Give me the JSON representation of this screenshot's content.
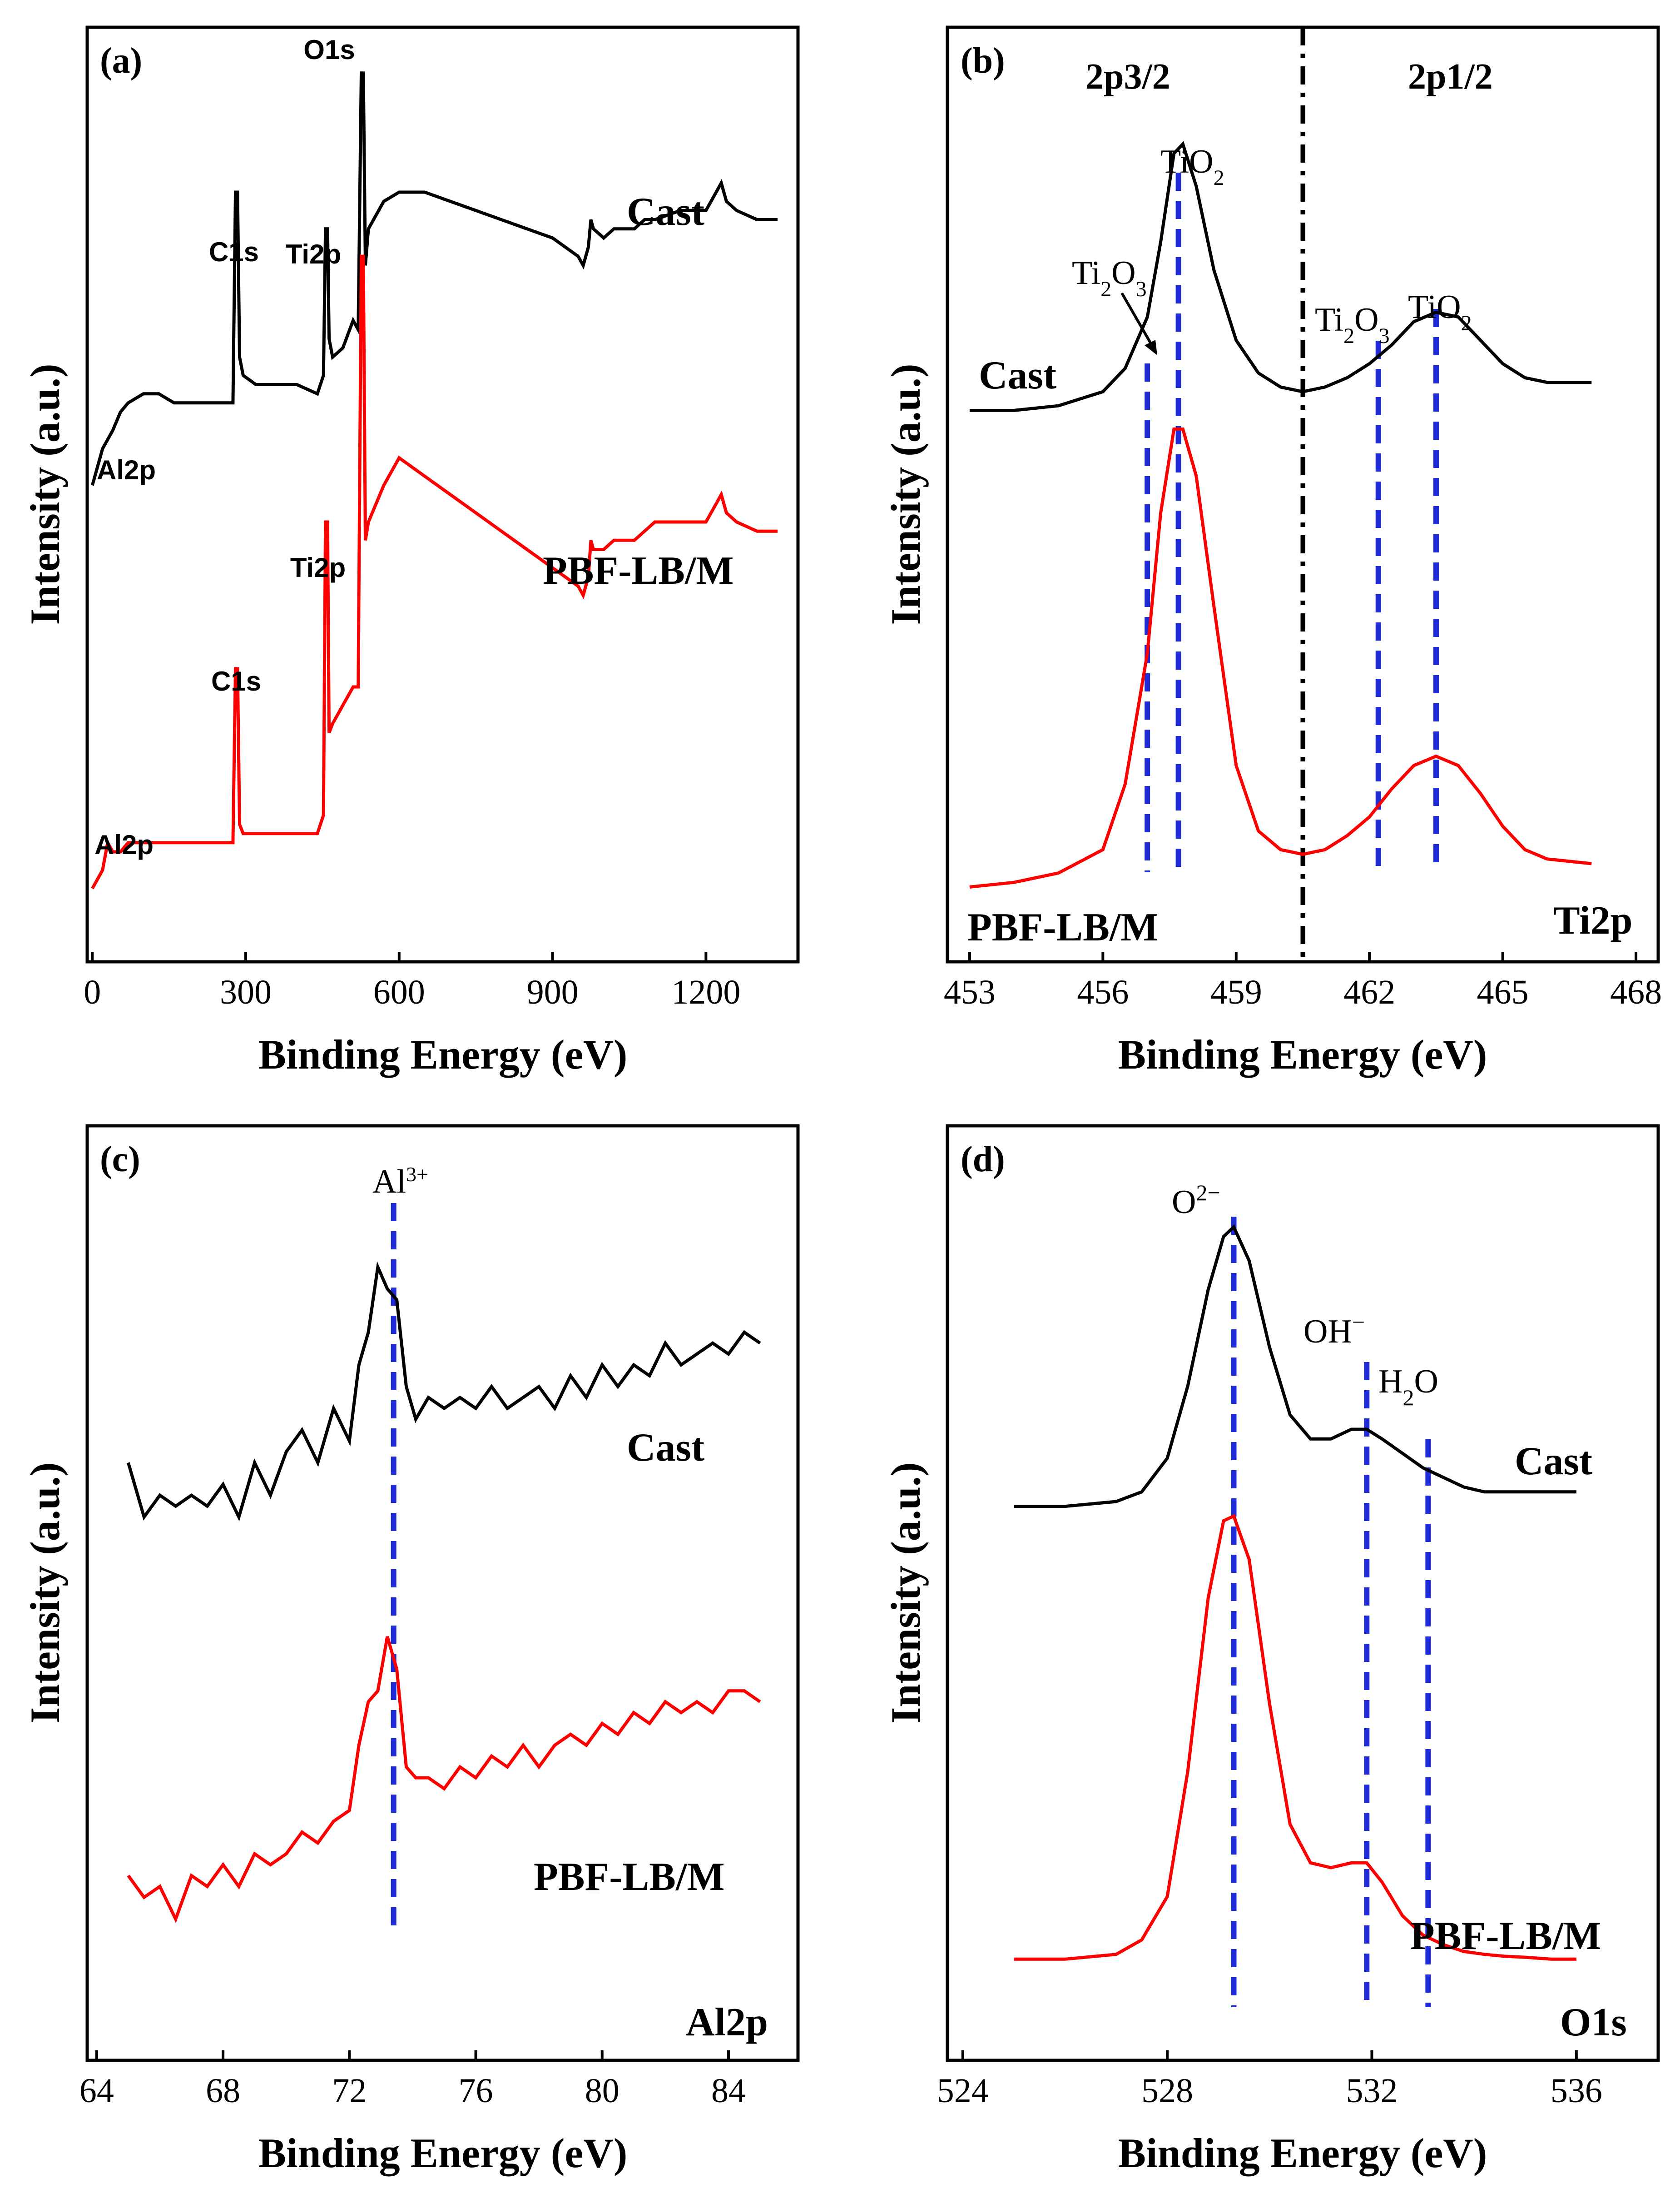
{
  "chart_data": [
    {
      "id": "a",
      "type": "line",
      "panel_label": "(a)",
      "xlabel": "Binding Energy (eV)",
      "ylabel": "Intensity (a.u.)",
      "xlim": [
        -10,
        1380
      ],
      "xticks": [
        0,
        300,
        600,
        900,
        1200
      ],
      "series": [
        {
          "name": "Cast",
          "color": "#000000",
          "label": "Cast",
          "x": [
            0,
            20,
            40,
            55,
            70,
            100,
            130,
            160,
            200,
            250,
            275,
            280,
            284,
            288,
            295,
            320,
            360,
            400,
            440,
            452,
            456,
            460,
            463,
            470,
            490,
            510,
            520,
            526,
            530,
            534,
            540,
            570,
            600,
            650,
            700,
            750,
            800,
            850,
            900,
            950,
            960,
            970,
            975,
            980,
            1000,
            1020,
            1060,
            1080,
            1100,
            1150,
            1200,
            1220,
            1230,
            1240,
            1260,
            1300,
            1340
          ],
          "y": [
            0.52,
            0.56,
            0.58,
            0.6,
            0.61,
            0.62,
            0.62,
            0.61,
            0.61,
            0.61,
            0.61,
            0.84,
            0.84,
            0.66,
            0.64,
            0.63,
            0.63,
            0.63,
            0.62,
            0.64,
            0.8,
            0.8,
            0.68,
            0.66,
            0.67,
            0.7,
            0.69,
            0.97,
            0.97,
            0.76,
            0.8,
            0.83,
            0.84,
            0.84,
            0.83,
            0.82,
            0.81,
            0.8,
            0.79,
            0.77,
            0.76,
            0.78,
            0.81,
            0.8,
            0.79,
            0.8,
            0.8,
            0.81,
            0.81,
            0.82,
            0.82,
            0.84,
            0.85,
            0.83,
            0.82,
            0.81,
            0.81
          ]
        },
        {
          "name": "PBF-LB/M",
          "color": "#ff0000",
          "label": "PBF-LB/M",
          "x": [
            0,
            20,
            30,
            40,
            55,
            70,
            100,
            150,
            200,
            250,
            275,
            280,
            284,
            288,
            295,
            320,
            360,
            400,
            440,
            452,
            456,
            460,
            463,
            470,
            490,
            510,
            520,
            526,
            530,
            534,
            540,
            570,
            600,
            650,
            700,
            750,
            800,
            850,
            900,
            950,
            960,
            970,
            975,
            980,
            1000,
            1020,
            1060,
            1080,
            1100,
            1150,
            1200,
            1220,
            1230,
            1240,
            1260,
            1300,
            1340
          ],
          "y": [
            0.08,
            0.1,
            0.13,
            0.12,
            0.12,
            0.13,
            0.13,
            0.13,
            0.13,
            0.13,
            0.13,
            0.32,
            0.32,
            0.15,
            0.14,
            0.14,
            0.14,
            0.14,
            0.14,
            0.16,
            0.48,
            0.48,
            0.25,
            0.26,
            0.28,
            0.3,
            0.3,
            0.77,
            0.77,
            0.46,
            0.48,
            0.52,
            0.55,
            0.53,
            0.51,
            0.49,
            0.47,
            0.45,
            0.43,
            0.41,
            0.4,
            0.42,
            0.46,
            0.45,
            0.45,
            0.46,
            0.46,
            0.47,
            0.48,
            0.48,
            0.48,
            0.5,
            0.51,
            0.49,
            0.48,
            0.47,
            0.47
          ]
        }
      ],
      "annotations": [
        "O1s",
        "C1s",
        "Ti2p",
        "Al2p",
        "C1s",
        "Ti2p",
        "Al2p"
      ],
      "series_labels": [
        "Cast",
        "PBF-LB/M"
      ]
    },
    {
      "id": "b",
      "type": "line",
      "panel_label": "(b)",
      "xlabel": "Binding Energy (eV)",
      "ylabel": "Intensity (a.u.)",
      "xlim": [
        452.5,
        468.5
      ],
      "xticks": [
        453,
        456,
        459,
        462,
        465,
        468
      ],
      "series": [
        {
          "name": "Cast",
          "color": "#000000",
          "label": "Cast",
          "x": [
            453,
            454,
            455,
            456,
            456.5,
            457,
            457.3,
            457.6,
            457.8,
            458.1,
            458.5,
            459,
            459.5,
            460,
            460.5,
            461,
            461.5,
            462,
            462.5,
            463,
            463.5,
            464,
            464.5,
            465,
            465.5,
            466,
            467
          ],
          "y": [
            0.59,
            0.59,
            0.595,
            0.61,
            0.635,
            0.69,
            0.77,
            0.865,
            0.875,
            0.83,
            0.74,
            0.665,
            0.63,
            0.615,
            0.61,
            0.615,
            0.625,
            0.64,
            0.66,
            0.685,
            0.695,
            0.69,
            0.665,
            0.64,
            0.625,
            0.62,
            0.62
          ]
        },
        {
          "name": "PBF-LB/M",
          "color": "#ff0000",
          "label": "PBF-LB/M",
          "x": [
            453,
            454,
            455,
            456,
            456.5,
            457,
            457.3,
            457.6,
            457.8,
            458.1,
            458.5,
            459,
            459.5,
            460,
            460.5,
            461,
            461.5,
            462,
            462.5,
            463,
            463.5,
            464,
            464.5,
            465,
            465.5,
            466,
            467
          ],
          "y": [
            0.08,
            0.085,
            0.095,
            0.12,
            0.19,
            0.33,
            0.48,
            0.57,
            0.57,
            0.52,
            0.38,
            0.21,
            0.14,
            0.12,
            0.115,
            0.12,
            0.135,
            0.155,
            0.185,
            0.21,
            0.22,
            0.21,
            0.18,
            0.145,
            0.12,
            0.11,
            0.105
          ]
        }
      ],
      "ref_lines": [
        {
          "x": 457.0,
          "label": "Ti2O3"
        },
        {
          "x": 457.7,
          "label": "TiO2"
        },
        {
          "x": 462.2,
          "label": "Ti2O3"
        },
        {
          "x": 463.5,
          "label": "TiO2"
        }
      ],
      "divider_x": 460.5,
      "region_labels": [
        "2p3/2",
        "2p1/2"
      ],
      "corner_label": "Ti2p",
      "series_labels": [
        "Cast",
        "PBF-LB/M"
      ]
    },
    {
      "id": "c",
      "type": "line",
      "panel_label": "(c)",
      "xlabel": "Binding Energy (eV)",
      "ylabel": "Intensity (a.u.)",
      "xlim": [
        63.7,
        86.2
      ],
      "xticks": [
        64,
        68,
        72,
        76,
        80,
        84
      ],
      "series": [
        {
          "name": "Cast",
          "color": "#000000",
          "label": "Cast",
          "x": [
            65,
            65.5,
            66,
            66.5,
            67,
            67.5,
            68,
            68.5,
            69,
            69.5,
            70,
            70.5,
            71,
            71.5,
            72,
            72.3,
            72.6,
            72.9,
            73.2,
            73.5,
            73.8,
            74.1,
            74.5,
            75,
            75.5,
            76,
            76.5,
            77,
            77.5,
            78,
            78.5,
            79,
            79.5,
            80,
            80.5,
            81,
            81.5,
            82,
            82.5,
            83,
            83.5,
            84,
            84.5,
            85
          ],
          "y": [
            0.55,
            0.5,
            0.52,
            0.51,
            0.52,
            0.51,
            0.53,
            0.5,
            0.55,
            0.52,
            0.56,
            0.58,
            0.55,
            0.6,
            0.57,
            0.64,
            0.67,
            0.73,
            0.71,
            0.7,
            0.62,
            0.59,
            0.61,
            0.6,
            0.61,
            0.6,
            0.62,
            0.6,
            0.61,
            0.62,
            0.6,
            0.63,
            0.61,
            0.64,
            0.62,
            0.64,
            0.63,
            0.66,
            0.64,
            0.65,
            0.66,
            0.65,
            0.67,
            0.66
          ]
        },
        {
          "name": "PBF-LB/M",
          "color": "#ff0000",
          "label": "PBF-LB/M",
          "x": [
            65,
            65.5,
            66,
            66.5,
            67,
            67.5,
            68,
            68.5,
            69,
            69.5,
            70,
            70.5,
            71,
            71.5,
            72,
            72.3,
            72.6,
            72.9,
            73.2,
            73.5,
            73.8,
            74.1,
            74.5,
            75,
            75.5,
            76,
            76.5,
            77,
            77.5,
            78,
            78.5,
            79,
            79.5,
            80,
            80.5,
            81,
            81.5,
            82,
            82.5,
            83,
            83.5,
            84,
            84.5,
            85
          ],
          "y": [
            0.17,
            0.15,
            0.16,
            0.13,
            0.17,
            0.16,
            0.18,
            0.16,
            0.19,
            0.18,
            0.19,
            0.21,
            0.2,
            0.22,
            0.23,
            0.29,
            0.33,
            0.34,
            0.39,
            0.36,
            0.27,
            0.26,
            0.26,
            0.25,
            0.27,
            0.26,
            0.28,
            0.27,
            0.29,
            0.27,
            0.29,
            0.3,
            0.29,
            0.31,
            0.3,
            0.32,
            0.31,
            0.33,
            0.32,
            0.33,
            0.32,
            0.34,
            0.34,
            0.33
          ]
        }
      ],
      "ref_lines": [
        {
          "x": 73.4,
          "label": "Al3+"
        }
      ],
      "corner_label": "Al2p",
      "series_labels": [
        "Cast",
        "PBF-LB/M"
      ]
    },
    {
      "id": "d",
      "type": "line",
      "panel_label": "(d)",
      "xlabel": "Binding Energy (eV)",
      "ylabel": "Intensity (a.u.)",
      "xlim": [
        523.7,
        537.6
      ],
      "xticks": [
        524,
        528,
        532,
        536
      ],
      "series": [
        {
          "name": "Cast",
          "color": "#000000",
          "label": "Cast",
          "x": [
            525,
            526,
            527,
            527.5,
            528,
            528.4,
            528.8,
            529.1,
            529.3,
            529.6,
            530,
            530.4,
            530.8,
            531.2,
            531.6,
            531.9,
            532.2,
            532.6,
            533,
            533.4,
            533.8,
            534.2,
            534.6,
            535,
            535.5,
            536
          ],
          "y": [
            0.575,
            0.575,
            0.58,
            0.59,
            0.625,
            0.7,
            0.8,
            0.855,
            0.865,
            0.83,
            0.74,
            0.67,
            0.645,
            0.645,
            0.655,
            0.655,
            0.645,
            0.63,
            0.615,
            0.605,
            0.595,
            0.59,
            0.59,
            0.59,
            0.59,
            0.59
          ]
        },
        {
          "name": "PBF-LB/M",
          "color": "#ff0000",
          "label": "PBF-LB/M",
          "x": [
            525,
            526,
            527,
            527.5,
            528,
            528.4,
            528.8,
            529.1,
            529.3,
            529.6,
            530,
            530.4,
            530.8,
            531.2,
            531.6,
            531.9,
            532.2,
            532.6,
            533,
            533.4,
            533.8,
            534.2,
            534.6,
            535,
            535.5,
            536
          ],
          "y": [
            0.105,
            0.105,
            0.11,
            0.125,
            0.17,
            0.3,
            0.48,
            0.56,
            0.565,
            0.52,
            0.37,
            0.245,
            0.205,
            0.2,
            0.205,
            0.205,
            0.185,
            0.15,
            0.13,
            0.12,
            0.113,
            0.11,
            0.108,
            0.107,
            0.105,
            0.105
          ]
        }
      ],
      "ref_lines": [
        {
          "x": 529.3,
          "label": "O2−"
        },
        {
          "x": 531.9,
          "label": "OH−"
        },
        {
          "x": 533.1,
          "label": "H2O"
        }
      ],
      "corner_label": "O1s",
      "series_labels": [
        "Cast",
        "PBF-LB/M"
      ]
    }
  ]
}
